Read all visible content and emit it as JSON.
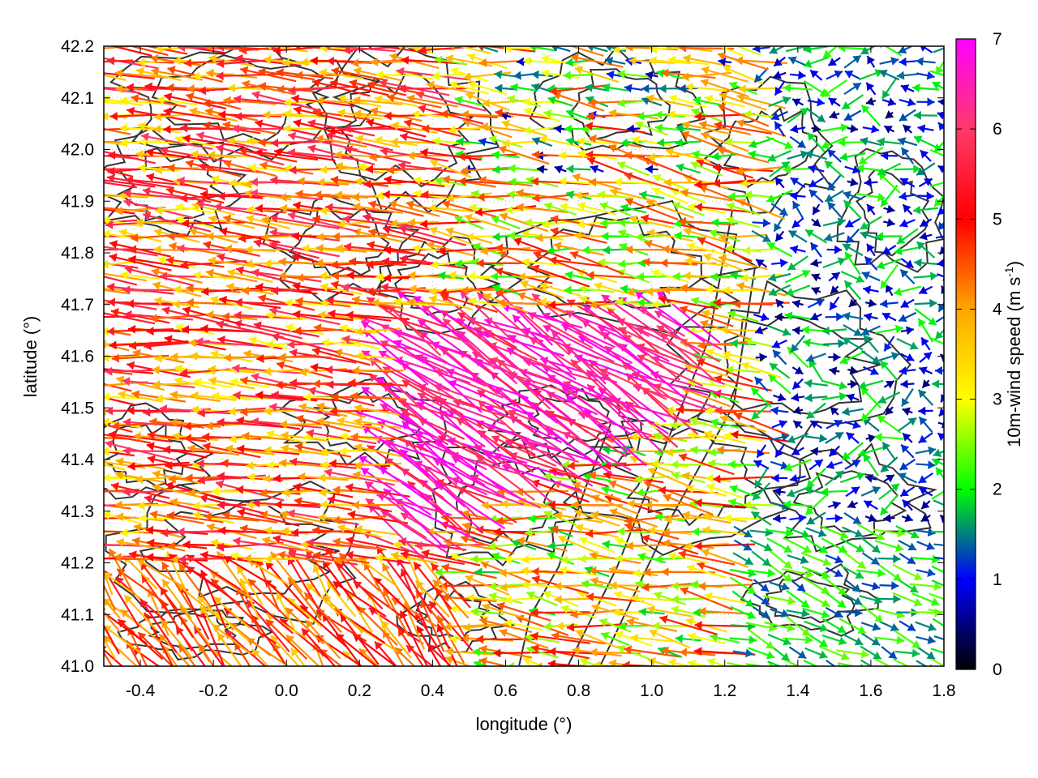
{
  "chart_data": {
    "type": "vector-field",
    "xlabel": "longitude (°)",
    "ylabel": "latitude (°)",
    "xlim": [
      -0.5,
      1.8
    ],
    "ylim": [
      41.0,
      42.2
    ],
    "x_ticks": [
      "-0.4",
      "-0.2",
      "0.0",
      "0.2",
      "0.4",
      "0.6",
      "0.8",
      "1.0",
      "1.2",
      "1.4",
      "1.6",
      "1.8"
    ],
    "x_tick_values": [
      -0.4,
      -0.2,
      0.0,
      0.2,
      0.4,
      0.6,
      0.8,
      1.0,
      1.2,
      1.4,
      1.6,
      1.8
    ],
    "y_ticks": [
      "41.0",
      "41.1",
      "41.2",
      "41.3",
      "41.4",
      "41.5",
      "41.6",
      "41.7",
      "41.8",
      "41.9",
      "42.0",
      "42.1",
      "42.2"
    ],
    "y_tick_values": [
      41.0,
      41.1,
      41.2,
      41.3,
      41.4,
      41.5,
      41.6,
      41.7,
      41.8,
      41.9,
      42.0,
      42.1,
      42.2
    ],
    "grid": true,
    "colorbar": {
      "label": "10m-wind speed (m s",
      "label_sup": "-1",
      "label_close": ")",
      "range": [
        0,
        7
      ],
      "ticks": [
        "0",
        "1",
        "2",
        "3",
        "4",
        "5",
        "6",
        "7"
      ],
      "tick_values": [
        0,
        1,
        2,
        3,
        4,
        5,
        6,
        7
      ],
      "colors": [
        "#000000",
        "#0000ff",
        "#00ff00",
        "#ffff00",
        "#ffa500",
        "#ff0000",
        "#ff00ff"
      ]
    },
    "wind_regions_description": [
      {
        "lon_range": [
          -0.5,
          0.4
        ],
        "lat_range": [
          41.0,
          42.2
        ],
        "direction": "westward",
        "speed_range": [
          3,
          6
        ]
      },
      {
        "lon_range": [
          0.3,
          1.1
        ],
        "lat_range": [
          41.2,
          41.7
        ],
        "direction": "north-westward",
        "speed_range": [
          5.5,
          7
        ]
      },
      {
        "lon_range": [
          1.2,
          1.8
        ],
        "lat_range": [
          41.0,
          41.3
        ],
        "direction": "eastward",
        "speed_range": [
          1,
          2.5
        ]
      },
      {
        "lon_range": [
          1.3,
          1.8
        ],
        "lat_range": [
          41.3,
          42.2
        ],
        "direction": "variable",
        "speed_range": [
          0.5,
          2
        ]
      }
    ],
    "contour_color": "#333333"
  }
}
